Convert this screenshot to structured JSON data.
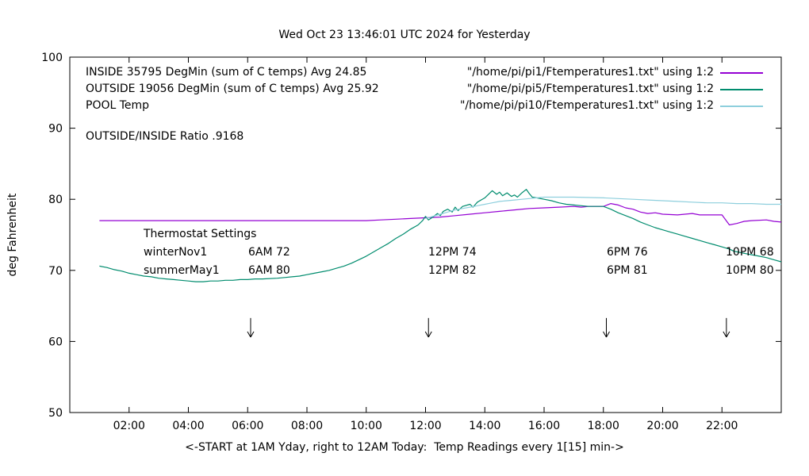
{
  "title": "Wed Oct 23 13:46:01 UTC 2024 for Yesterday",
  "ylabel": "deg Fahrenheit",
  "xlabel": "<-START at 1AM Yday, right to 12AM Today:  Temp Readings every 1[15] min->",
  "ratio_text": "OUTSIDE/INSIDE Ratio .9168",
  "legend": [
    {
      "label": "INSIDE 35795 DegMin (sum of C temps) Avg 24.85",
      "file": "\"/home/pi/pi1/Ftemperatures1.txt\" using 1:2"
    },
    {
      "label": "OUTSIDE 19056 DegMin (sum of C temps) Avg 25.92",
      "file": "\"/home/pi/pi5/Ftemperatures1.txt\" using 1:2"
    },
    {
      "label": "POOL Temp",
      "file": "\"/home/pi/pi10/Ftemperatures1.txt\" using 1:2"
    }
  ],
  "thermostat": {
    "heading": "Thermostat Settings",
    "rows": [
      {
        "label": "winterNov1",
        "c1": "6AM 72",
        "c2": "12PM 74",
        "c3": "6PM 76",
        "c4": "10PM 68"
      },
      {
        "label": "summerMay1",
        "c1": "6AM 80",
        "c2": "12PM 82",
        "c3": "6PM 81",
        "c4": "10PM 80"
      }
    ]
  },
  "chart_data": {
    "type": "line",
    "title": "Wed Oct 23 13:46:01 UTC 2024 for Yesterday",
    "xlabel": "<-START at 1AM Yday, right to 12AM Today:  Temp Readings every 1[15] min->",
    "ylabel": "deg Fahrenheit",
    "xlim": [
      0,
      24
    ],
    "ylim": [
      50,
      100
    ],
    "grid": false,
    "legend_position": "top-right",
    "x_ticks": [
      {
        "t": 2,
        "label": "02:00"
      },
      {
        "t": 4,
        "label": "04:00"
      },
      {
        "t": 6,
        "label": "06:00"
      },
      {
        "t": 8,
        "label": "08:00"
      },
      {
        "t": 10,
        "label": "10:00"
      },
      {
        "t": 12,
        "label": "12:00"
      },
      {
        "t": 14,
        "label": "14:00"
      },
      {
        "t": 16,
        "label": "16:00"
      },
      {
        "t": 18,
        "label": "18:00"
      },
      {
        "t": 20,
        "label": "20:00"
      },
      {
        "t": 22,
        "label": "22:00"
      }
    ],
    "y_ticks": [
      {
        "v": 50,
        "label": "50"
      },
      {
        "v": 60,
        "label": "60"
      },
      {
        "v": 70,
        "label": "70"
      },
      {
        "v": 80,
        "label": "80"
      },
      {
        "v": 90,
        "label": "90"
      },
      {
        "v": 100,
        "label": "100"
      }
    ],
    "arrows": [
      {
        "t": 6.1,
        "top": 63.3,
        "tip": 60.6
      },
      {
        "t": 12.1,
        "top": 63.3,
        "tip": 60.6
      },
      {
        "t": 18.1,
        "top": 63.3,
        "tip": 60.6
      },
      {
        "t": 22.15,
        "top": 63.3,
        "tip": 60.6
      }
    ],
    "series": [
      {
        "name": "INSIDE",
        "color": "#9400d3",
        "points": [
          [
            1,
            77
          ],
          [
            2,
            77
          ],
          [
            3,
            77
          ],
          [
            4,
            77
          ],
          [
            5,
            77
          ],
          [
            6,
            77
          ],
          [
            7,
            77
          ],
          [
            8,
            77
          ],
          [
            9,
            77
          ],
          [
            10,
            77
          ],
          [
            10.5,
            77.1
          ],
          [
            11,
            77.2
          ],
          [
            11.5,
            77.3
          ],
          [
            12,
            77.4
          ],
          [
            12.5,
            77.5
          ],
          [
            13,
            77.7
          ],
          [
            13.5,
            77.9
          ],
          [
            14,
            78.1
          ],
          [
            14.5,
            78.3
          ],
          [
            15,
            78.5
          ],
          [
            15.5,
            78.7
          ],
          [
            16,
            78.8
          ],
          [
            16.5,
            78.9
          ],
          [
            17,
            79
          ],
          [
            17.25,
            78.9
          ],
          [
            17.5,
            79
          ],
          [
            18,
            79
          ],
          [
            18.25,
            79.4
          ],
          [
            18.5,
            79.2
          ],
          [
            18.75,
            78.8
          ],
          [
            19,
            78.6
          ],
          [
            19.25,
            78.2
          ],
          [
            19.5,
            78
          ],
          [
            19.75,
            78.1
          ],
          [
            20,
            77.9
          ],
          [
            20.5,
            77.8
          ],
          [
            21,
            78
          ],
          [
            21.25,
            77.8
          ],
          [
            21.75,
            77.8
          ],
          [
            22,
            77.8
          ],
          [
            22.25,
            76.4
          ],
          [
            22.5,
            76.6
          ],
          [
            22.75,
            76.9
          ],
          [
            23,
            77
          ],
          [
            23.5,
            77.1
          ],
          [
            23.75,
            76.9
          ],
          [
            24,
            76.8
          ]
        ]
      },
      {
        "name": "OUTSIDE",
        "color": "#008c6e",
        "points": [
          [
            1,
            70.6
          ],
          [
            1.25,
            70.4
          ],
          [
            1.5,
            70.1
          ],
          [
            1.75,
            69.9
          ],
          [
            2,
            69.6
          ],
          [
            2.25,
            69.4
          ],
          [
            2.5,
            69.2
          ],
          [
            2.75,
            69.1
          ],
          [
            3,
            68.9
          ],
          [
            3.25,
            68.8
          ],
          [
            3.5,
            68.7
          ],
          [
            3.75,
            68.6
          ],
          [
            4,
            68.5
          ],
          [
            4.25,
            68.4
          ],
          [
            4.5,
            68.4
          ],
          [
            4.75,
            68.5
          ],
          [
            5,
            68.5
          ],
          [
            5.25,
            68.6
          ],
          [
            5.5,
            68.6
          ],
          [
            5.75,
            68.7
          ],
          [
            6,
            68.7
          ],
          [
            6.25,
            68.8
          ],
          [
            6.5,
            68.8
          ],
          [
            7,
            68.9
          ],
          [
            7.25,
            69
          ],
          [
            7.5,
            69.1
          ],
          [
            7.75,
            69.2
          ],
          [
            8,
            69.4
          ],
          [
            8.25,
            69.6
          ],
          [
            8.5,
            69.8
          ],
          [
            8.75,
            70
          ],
          [
            9,
            70.3
          ],
          [
            9.25,
            70.6
          ],
          [
            9.5,
            71
          ],
          [
            9.75,
            71.5
          ],
          [
            10,
            72
          ],
          [
            10.25,
            72.6
          ],
          [
            10.5,
            73.2
          ],
          [
            10.75,
            73.8
          ],
          [
            11,
            74.5
          ],
          [
            11.25,
            75.1
          ],
          [
            11.5,
            75.8
          ],
          [
            11.75,
            76.4
          ],
          [
            11.9,
            77
          ],
          [
            12,
            77.6
          ],
          [
            12.1,
            77.1
          ],
          [
            12.25,
            77.5
          ],
          [
            12.4,
            78
          ],
          [
            12.5,
            77.7
          ],
          [
            12.6,
            78.3
          ],
          [
            12.75,
            78.6
          ],
          [
            12.9,
            78.2
          ],
          [
            13,
            78.9
          ],
          [
            13.1,
            78.4
          ],
          [
            13.25,
            79
          ],
          [
            13.5,
            79.3
          ],
          [
            13.6,
            78.9
          ],
          [
            13.75,
            79.6
          ],
          [
            14,
            80.2
          ],
          [
            14.1,
            80.6
          ],
          [
            14.25,
            81.2
          ],
          [
            14.4,
            80.7
          ],
          [
            14.5,
            81
          ],
          [
            14.6,
            80.5
          ],
          [
            14.75,
            80.9
          ],
          [
            14.9,
            80.4
          ],
          [
            15,
            80.6
          ],
          [
            15.1,
            80.3
          ],
          [
            15.25,
            80.9
          ],
          [
            15.4,
            81.4
          ],
          [
            15.5,
            80.8
          ],
          [
            15.6,
            80.3
          ],
          [
            15.75,
            80.2
          ],
          [
            16,
            80
          ],
          [
            16.25,
            79.8
          ],
          [
            16.5,
            79.5
          ],
          [
            16.75,
            79.3
          ],
          [
            17,
            79.2
          ],
          [
            17.25,
            79.1
          ],
          [
            17.5,
            79
          ],
          [
            18,
            79
          ],
          [
            18.25,
            78.6
          ],
          [
            18.5,
            78.1
          ],
          [
            18.75,
            77.7
          ],
          [
            19,
            77.3
          ],
          [
            19.25,
            76.8
          ],
          [
            19.5,
            76.4
          ],
          [
            19.75,
            76
          ],
          [
            20,
            75.7
          ],
          [
            20.25,
            75.4
          ],
          [
            20.5,
            75.1
          ],
          [
            20.75,
            74.8
          ],
          [
            21,
            74.5
          ],
          [
            21.25,
            74.2
          ],
          [
            21.5,
            73.9
          ],
          [
            21.75,
            73.6
          ],
          [
            22,
            73.3
          ],
          [
            22.25,
            73
          ],
          [
            22.4,
            72.7
          ],
          [
            22.75,
            72.4
          ],
          [
            23,
            72.2
          ],
          [
            23.25,
            72
          ],
          [
            23.5,
            71.8
          ],
          [
            23.75,
            71.5
          ],
          [
            24,
            71.2
          ]
        ]
      },
      {
        "name": "POOL",
        "color": "#8ecfdd",
        "points": [
          [
            12,
            77.3
          ],
          [
            12.25,
            77.6
          ],
          [
            12.5,
            77.9
          ],
          [
            12.75,
            78.2
          ],
          [
            13,
            78.5
          ],
          [
            13.25,
            78.7
          ],
          [
            13.5,
            78.9
          ],
          [
            13.75,
            79.1
          ],
          [
            14,
            79.3
          ],
          [
            14.25,
            79.5
          ],
          [
            14.5,
            79.7
          ],
          [
            14.75,
            79.8
          ],
          [
            15,
            79.9
          ],
          [
            15.25,
            80
          ],
          [
            15.5,
            80.1
          ],
          [
            15.75,
            80.2
          ],
          [
            16,
            80.3
          ],
          [
            17,
            80.3
          ],
          [
            18,
            80.2
          ],
          [
            18.5,
            80.1
          ],
          [
            19,
            80
          ],
          [
            19.5,
            79.9
          ],
          [
            20,
            79.8
          ],
          [
            20.5,
            79.7
          ],
          [
            21,
            79.6
          ],
          [
            21.5,
            79.5
          ],
          [
            22,
            79.5
          ],
          [
            22.5,
            79.4
          ],
          [
            23,
            79.4
          ],
          [
            23.5,
            79.3
          ],
          [
            24,
            79.3
          ]
        ]
      }
    ]
  }
}
